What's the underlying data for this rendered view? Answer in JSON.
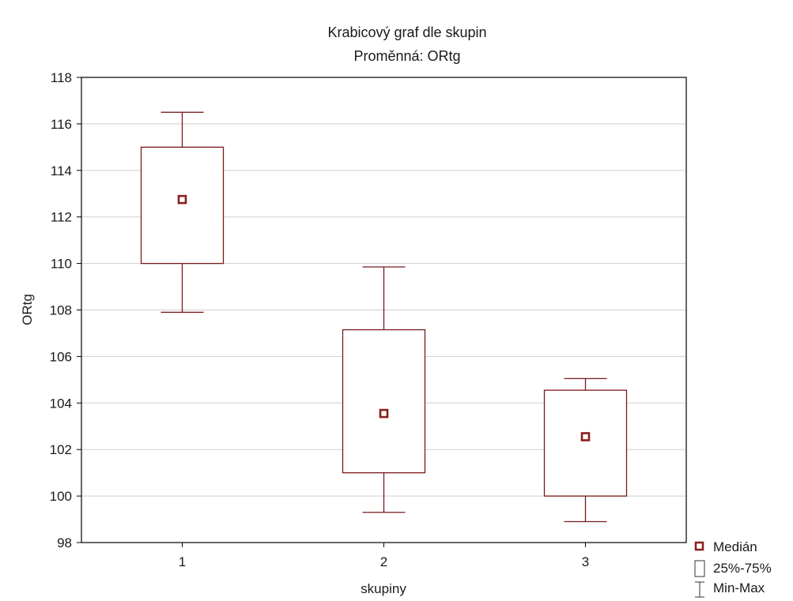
{
  "chart_data": {
    "type": "boxplot",
    "title": "Krabicový graf dle skupin",
    "subtitle": "Proměnná: ORtg",
    "xlabel": "skupiny",
    "ylabel": "ORtg",
    "ylim": [
      98,
      118
    ],
    "yticks": [
      "98",
      "100",
      "102",
      "104",
      "106",
      "108",
      "110",
      "112",
      "114",
      "116",
      "118"
    ],
    "grid": true,
    "legend_position": "bottom-right",
    "categories": [
      "1",
      "2",
      "3"
    ],
    "groups": [
      {
        "category": "1",
        "min": 107.9,
        "q1": 110.0,
        "median": 112.75,
        "q3": 115.0,
        "max": 116.5
      },
      {
        "category": "2",
        "min": 99.3,
        "q1": 101.0,
        "median": 103.55,
        "q3": 107.15,
        "max": 109.85
      },
      {
        "category": "3",
        "min": 98.9,
        "q1": 100.0,
        "median": 102.55,
        "q3": 104.55,
        "max": 105.05
      }
    ],
    "legend": {
      "median": "Medián",
      "box": "25%-75%",
      "whisker": "Min-Max"
    },
    "colors": {
      "box_line": "#7a1a1a",
      "median_marker": "#8b1e1e",
      "grid": "#cfcfcf",
      "axis": "#000000"
    }
  }
}
